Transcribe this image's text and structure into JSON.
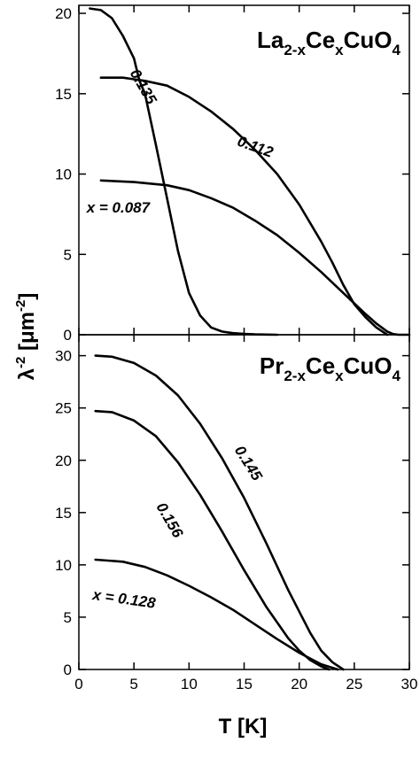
{
  "chart_data": {
    "type": "line",
    "xlabel": "T [K]",
    "ylabel": "λ-2 [μm-2]",
    "ylabel_parts": {
      "base": "λ",
      "exp": "-2",
      "unit_open": " [μm",
      "unit_exp": "-2",
      "unit_close": "]"
    },
    "xlim": [
      0,
      30
    ],
    "xticks": [
      0,
      5,
      10,
      15,
      20,
      25,
      30
    ],
    "grid": false,
    "panels": [
      {
        "formula": {
          "a": "La",
          "a_sub": "2-x",
          "b": "Ce",
          "b_sub": "x",
          "c": "CuO",
          "c_sub": "4"
        },
        "ylim": [
          0,
          20.5
        ],
        "yticks": [
          0,
          5,
          10,
          15,
          20
        ],
        "series": [
          {
            "name": "0.135",
            "label": "0.135",
            "x": [
              1,
              2,
              3,
              4,
              5,
              5.5,
              6,
              7,
              8,
              9,
              10,
              11,
              12,
              13,
              14,
              15,
              16,
              17,
              18
            ],
            "y": [
              20.3,
              20.2,
              19.7,
              18.6,
              17.2,
              15.8,
              15.0,
              11.8,
              8.5,
              5.2,
              2.6,
              1.2,
              0.45,
              0.2,
              0.1,
              0.05,
              0.02,
              0.01,
              0
            ]
          },
          {
            "name": "0.112",
            "label": "0.112",
            "x": [
              2,
              3,
              4,
              5,
              6,
              8,
              10,
              12,
              14,
              16,
              18,
              20,
              22,
              23,
              24,
              25,
              26,
              27,
              28
            ],
            "y": [
              16,
              16,
              16,
              15.9,
              15.8,
              15.5,
              14.8,
              13.9,
              12.8,
              11.5,
              10,
              8.1,
              5.8,
              4.5,
              3.1,
              1.9,
              1.1,
              0.45,
              0
            ]
          },
          {
            "name": "x = 0.087",
            "label": "x = 0.087",
            "x": [
              2,
              5,
              8,
              10,
              12,
              14,
              16,
              18,
              20,
              22,
              24,
              26,
              27,
              28,
              28.5,
              29,
              30
            ],
            "y": [
              9.6,
              9.5,
              9.3,
              9.0,
              8.5,
              7.9,
              7.1,
              6.2,
              5.1,
              3.9,
              2.6,
              1.3,
              0.7,
              0.2,
              0.05,
              0,
              0
            ]
          }
        ],
        "annotations": [
          {
            "text": "0.135",
            "x": 4.6,
            "y": 16.3,
            "angle": 60
          },
          {
            "text": "0.112",
            "x": 14.3,
            "y": 11.8,
            "angle": 20
          },
          {
            "text": "x = 0.087",
            "x": 0.7,
            "y": 7.6,
            "angle": 0
          }
        ]
      },
      {
        "formula": {
          "a": "Pr",
          "a_sub": "2-x",
          "b": "Ce",
          "b_sub": "x",
          "c": "CuO",
          "c_sub": "4"
        },
        "ylim": [
          0,
          32
        ],
        "yticks": [
          0,
          5,
          10,
          15,
          20,
          25,
          30
        ],
        "series": [
          {
            "name": "0.145",
            "label": "0.145",
            "x": [
              1.5,
              3,
              5,
              7,
              9,
              11,
              13,
              15,
              17,
              19,
              21,
              22,
              23,
              24
            ],
            "y": [
              30,
              29.9,
              29.3,
              28.1,
              26.2,
              23.5,
              20.2,
              16.4,
              12.1,
              7.6,
              3.5,
              1.8,
              0.7,
              0
            ]
          },
          {
            "name": "0.156",
            "label": "0.156",
            "x": [
              1.5,
              3,
              5,
              7,
              9,
              11,
              13,
              15,
              17,
              19,
              20,
              21,
              22,
              22.7
            ],
            "y": [
              24.7,
              24.6,
              23.8,
              22.3,
              19.8,
              16.7,
              13.2,
              9.5,
              6.0,
              3.0,
              1.8,
              0.9,
              0.3,
              0
            ]
          },
          {
            "name": "x = 0.128",
            "label": "x = 0.128",
            "x": [
              1.5,
              4,
              6,
              8,
              10,
              12,
              14,
              16,
              18,
              20,
              22,
              23.5
            ],
            "y": [
              10.5,
              10.3,
              9.8,
              9.0,
              8.0,
              6.9,
              5.7,
              4.3,
              2.9,
              1.6,
              0.5,
              0
            ]
          }
        ],
        "annotations": [
          {
            "text": "0.145",
            "x": 14.1,
            "y": 21.0,
            "angle": 58
          },
          {
            "text": "0.156",
            "x": 7.0,
            "y": 15.6,
            "angle": 60
          },
          {
            "text": "x = 0.128",
            "x": 1.2,
            "y": 6.7,
            "angle": 8
          }
        ]
      }
    ]
  }
}
